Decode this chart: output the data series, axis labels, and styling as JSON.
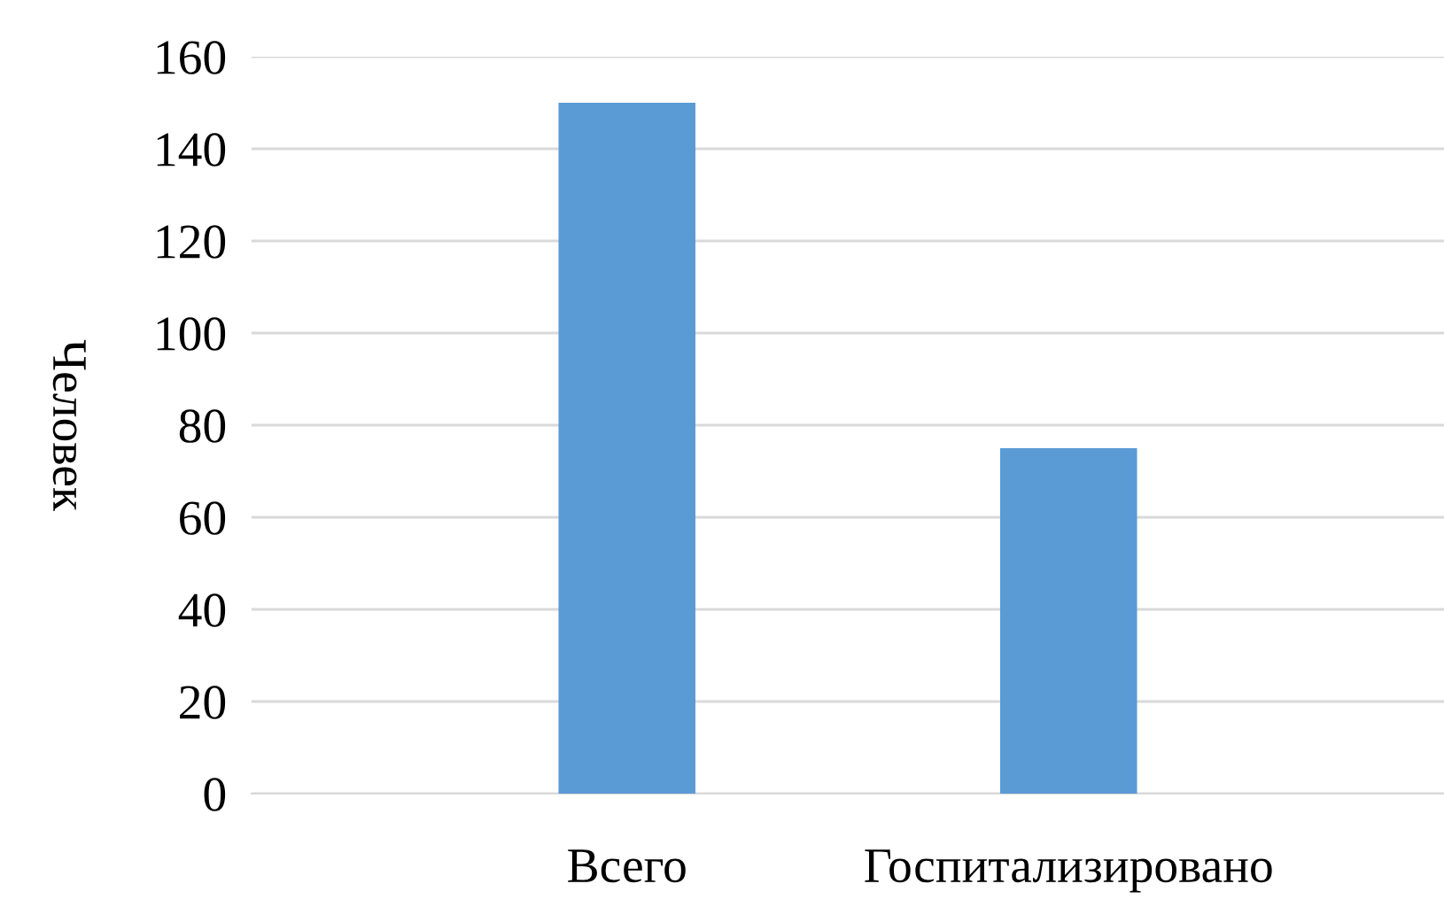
{
  "chart_data": {
    "type": "bar",
    "ylabel": "Человек",
    "categories": [
      "Всего",
      "Госпитализировано"
    ],
    "values": [
      150,
      75
    ],
    "color": "#5b9bd5",
    "ylim": [
      0,
      160
    ],
    "yticks": [
      0,
      20,
      40,
      60,
      80,
      100,
      120,
      140,
      160
    ],
    "grid": "y"
  }
}
